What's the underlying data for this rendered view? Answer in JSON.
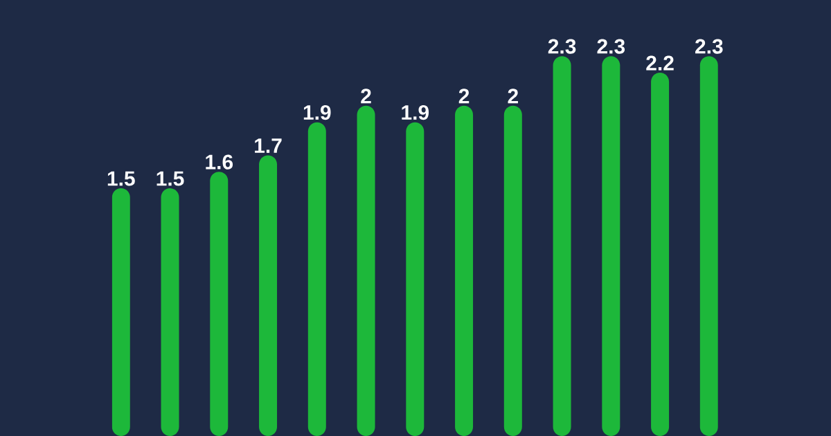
{
  "chart_data": {
    "type": "bar",
    "categories": [
      null,
      null,
      null,
      null,
      null,
      null,
      null,
      null,
      null,
      null,
      null,
      null,
      null
    ],
    "values": [
      1.5,
      1.5,
      1.6,
      1.7,
      1.9,
      2,
      1.9,
      2,
      2,
      2.3,
      2.3,
      2.2,
      2.3
    ],
    "color": "#1db83a",
    "data_labels": true
  }
}
